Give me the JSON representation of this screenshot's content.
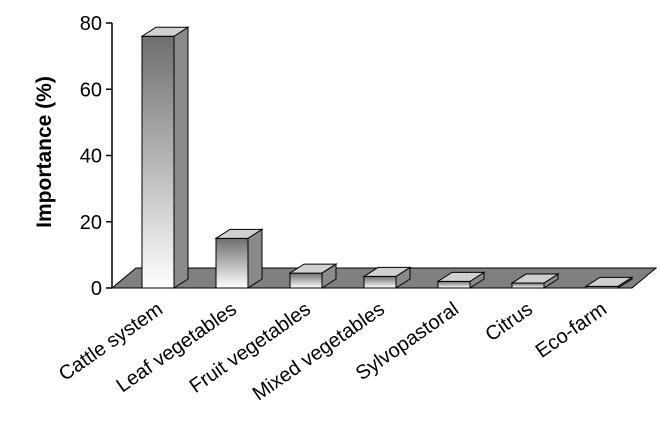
{
  "chart_data": {
    "type": "bar",
    "categories": [
      "Cattle system",
      "Leaf vegetables",
      "Fruit vegetables",
      "Mixed vegetables",
      "Sylvopastoral",
      "Citrus",
      "Eco-farm"
    ],
    "values": [
      76,
      15,
      4.5,
      3.5,
      2,
      1.5,
      0.5
    ],
    "title": "",
    "xlabel": "",
    "ylabel": "Importance (%)",
    "ylim": [
      0,
      80
    ],
    "yticks": [
      "0",
      "20",
      "40",
      "60",
      "80"
    ],
    "grid": false,
    "legend": "none",
    "style": "3d-bar",
    "colors": {
      "floor": "#808080",
      "floor_edge": "#000000",
      "bar_light": "#ffffff",
      "bar_dark": "#6e6e6e",
      "bar_top": "#d0d0d0",
      "bar_side": "#8a8a8a"
    }
  }
}
